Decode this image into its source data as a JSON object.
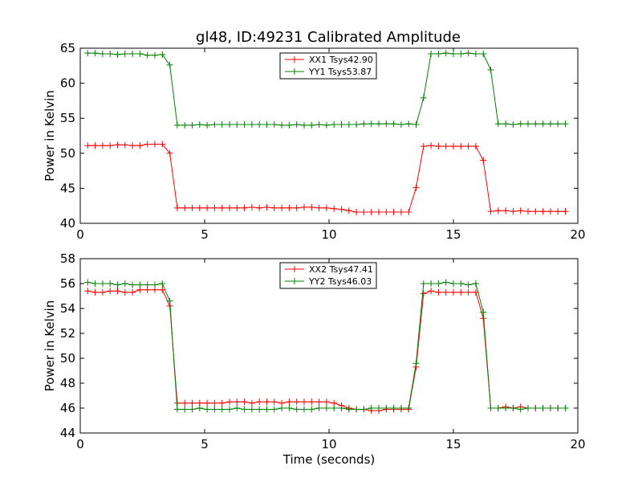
{
  "figure": {
    "title": "gl48, ID:49231 Calibrated Amplitude"
  },
  "chart_data": [
    {
      "type": "line",
      "title": "gl48, ID:49231 Calibrated Amplitude",
      "xlabel": "",
      "ylabel": "Power in Kelvin",
      "xlim": [
        0,
        20
      ],
      "ylim": [
        40,
        65
      ],
      "xticks": [
        0,
        5,
        10,
        15,
        20
      ],
      "yticks": [
        40,
        45,
        50,
        55,
        60,
        65
      ],
      "grid": false,
      "legend": "top-center",
      "marker": "+",
      "x": [
        0.3,
        0.6,
        0.9,
        1.2,
        1.5,
        1.8,
        2.1,
        2.4,
        2.7,
        3.0,
        3.3,
        3.6,
        3.9,
        4.2,
        4.5,
        4.8,
        5.1,
        5.4,
        5.7,
        6.0,
        6.3,
        6.6,
        6.9,
        7.2,
        7.5,
        7.8,
        8.1,
        8.4,
        8.7,
        9.0,
        9.3,
        9.6,
        9.9,
        10.2,
        10.5,
        10.8,
        11.1,
        11.4,
        11.7,
        12.0,
        12.3,
        12.6,
        12.9,
        13.2,
        13.5,
        13.8,
        14.1,
        14.4,
        14.7,
        15.0,
        15.3,
        15.6,
        15.9,
        16.2,
        16.5,
        16.8,
        17.1,
        17.4,
        17.7,
        18.0,
        18.3,
        18.6,
        18.9,
        19.2,
        19.5
      ],
      "series": [
        {
          "name": "XX1 Tsys42.90",
          "color": "#ff0000",
          "values": [
            51.1,
            51.1,
            51.1,
            51.1,
            51.2,
            51.2,
            51.1,
            51.1,
            51.3,
            51.3,
            51.3,
            50.0,
            42.2,
            42.2,
            42.2,
            42.2,
            42.2,
            42.2,
            42.2,
            42.2,
            42.2,
            42.2,
            42.3,
            42.2,
            42.3,
            42.2,
            42.2,
            42.2,
            42.2,
            42.3,
            42.3,
            42.2,
            42.2,
            42.1,
            42.0,
            41.8,
            41.6,
            41.6,
            41.6,
            41.6,
            41.6,
            41.6,
            41.6,
            41.6,
            45.1,
            51.0,
            51.1,
            51.0,
            51.0,
            51.0,
            51.0,
            51.0,
            51.0,
            49.0,
            41.7,
            41.8,
            41.8,
            41.7,
            41.8,
            41.7,
            41.7,
            41.7,
            41.7,
            41.7,
            41.7
          ]
        },
        {
          "name": "YY1 Tsys53.87",
          "color": "#008000",
          "values": [
            64.3,
            64.3,
            64.2,
            64.2,
            64.1,
            64.2,
            64.2,
            64.2,
            64.0,
            64.0,
            64.1,
            62.6,
            54.0,
            54.0,
            54.0,
            54.1,
            54.0,
            54.1,
            54.1,
            54.1,
            54.1,
            54.1,
            54.1,
            54.1,
            54.1,
            54.1,
            54.0,
            54.0,
            54.1,
            54.0,
            54.0,
            54.1,
            54.0,
            54.1,
            54.1,
            54.1,
            54.1,
            54.2,
            54.2,
            54.2,
            54.2,
            54.2,
            54.1,
            54.2,
            54.1,
            57.9,
            64.2,
            64.2,
            64.3,
            64.2,
            64.2,
            64.3,
            64.2,
            64.2,
            61.9,
            54.2,
            54.2,
            54.1,
            54.2,
            54.2,
            54.2,
            54.2,
            54.2,
            54.2,
            54.2
          ]
        }
      ]
    },
    {
      "type": "line",
      "title": "",
      "xlabel": "Time (seconds)",
      "ylabel": "Power in Kelvin",
      "xlim": [
        0,
        20
      ],
      "ylim": [
        44,
        58
      ],
      "xticks": [
        0,
        5,
        10,
        15,
        20
      ],
      "yticks": [
        44,
        46,
        48,
        50,
        52,
        54,
        56,
        58
      ],
      "grid": false,
      "legend": "top-center",
      "marker": "+",
      "x": [
        0.3,
        0.6,
        0.9,
        1.2,
        1.5,
        1.8,
        2.1,
        2.4,
        2.7,
        3.0,
        3.3,
        3.6,
        3.9,
        4.2,
        4.5,
        4.8,
        5.1,
        5.4,
        5.7,
        6.0,
        6.3,
        6.6,
        6.9,
        7.2,
        7.5,
        7.8,
        8.1,
        8.4,
        8.7,
        9.0,
        9.3,
        9.6,
        9.9,
        10.2,
        10.5,
        10.8,
        11.1,
        11.4,
        11.7,
        12.0,
        12.3,
        12.6,
        12.9,
        13.2,
        13.5,
        13.8,
        14.1,
        14.4,
        14.7,
        15.0,
        15.3,
        15.6,
        15.9,
        16.2,
        16.5,
        16.8,
        17.1,
        17.4,
        17.7,
        18.0,
        18.3,
        18.6,
        18.9,
        19.2,
        19.5
      ],
      "series": [
        {
          "name": "XX2 Tsys47.41",
          "color": "#ff0000",
          "values": [
            55.4,
            55.3,
            55.3,
            55.4,
            55.4,
            55.3,
            55.3,
            55.5,
            55.5,
            55.5,
            55.5,
            54.2,
            46.4,
            46.4,
            46.4,
            46.4,
            46.4,
            46.4,
            46.4,
            46.5,
            46.5,
            46.5,
            46.4,
            46.5,
            46.5,
            46.5,
            46.4,
            46.5,
            46.5,
            46.5,
            46.5,
            46.5,
            46.5,
            46.4,
            46.2,
            46.0,
            45.9,
            45.9,
            45.8,
            45.8,
            45.9,
            45.9,
            45.9,
            45.9,
            49.3,
            55.2,
            55.4,
            55.3,
            55.3,
            55.3,
            55.3,
            55.3,
            55.3,
            53.2,
            46.0,
            46.0,
            46.1,
            46.0,
            46.1,
            46.0,
            46.0,
            46.0,
            46.0,
            46.0,
            46.0
          ]
        },
        {
          "name": "YY2 Tsys46.03",
          "color": "#008000",
          "values": [
            56.1,
            56.0,
            56.0,
            56.0,
            55.9,
            56.0,
            55.9,
            55.9,
            55.9,
            55.9,
            56.0,
            54.6,
            45.9,
            45.9,
            45.9,
            46.0,
            45.9,
            45.9,
            45.9,
            45.9,
            46.0,
            45.9,
            45.9,
            45.9,
            45.9,
            45.9,
            46.0,
            46.0,
            45.9,
            45.9,
            45.9,
            46.0,
            46.0,
            46.0,
            46.0,
            45.9,
            45.9,
            45.9,
            46.0,
            46.0,
            46.0,
            46.0,
            46.0,
            46.0,
            49.6,
            56.0,
            56.0,
            56.0,
            56.1,
            56.0,
            56.0,
            55.9,
            56.0,
            53.7,
            46.0,
            46.0,
            46.0,
            46.0,
            45.9,
            46.0,
            46.0,
            46.0,
            46.0,
            46.0,
            46.0
          ]
        }
      ]
    }
  ]
}
